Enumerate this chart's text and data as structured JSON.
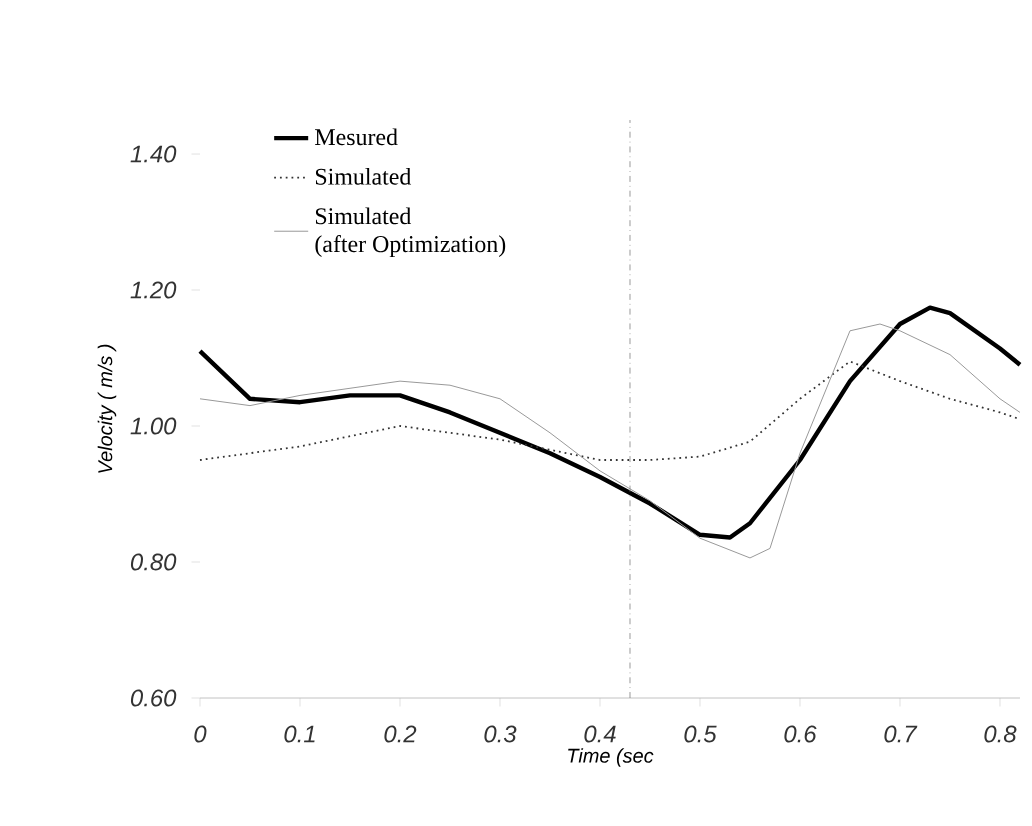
{
  "chart_data": {
    "type": "line",
    "xlabel": "Time (sec",
    "ylabel": "Velocity ( m/s )",
    "xlim": [
      0,
      0.82
    ],
    "ylim": [
      0.6,
      1.45
    ],
    "xticks": [
      0,
      0.1,
      0.2,
      0.3,
      0.4,
      0.5,
      0.6,
      0.7,
      0.8
    ],
    "yticks": [
      {
        "value": 0.6,
        "label": "0.60"
      },
      {
        "value": 0.8,
        "label": "0.80"
      },
      {
        "value": 1.0,
        "label": "1.00"
      },
      {
        "value": 1.2,
        "label": "1.20"
      },
      {
        "value": 1.4,
        "label": "1.40"
      }
    ],
    "legend": "top left",
    "marker": "none",
    "ref_lines": [
      {
        "axis": "x",
        "value": 0.43,
        "line_style": "dashed"
      }
    ],
    "series": [
      {
        "name": "Mesured",
        "color": "#000000",
        "line_style": "solid",
        "x": [
          0,
          0.05,
          0.1,
          0.15,
          0.2,
          0.25,
          0.3,
          0.35,
          0.4,
          0.45,
          0.5,
          0.53,
          0.55,
          0.6,
          0.65,
          0.7,
          0.73,
          0.75,
          0.8,
          0.82
        ],
        "values": [
          1.11,
          1.04,
          1.035,
          1.045,
          1.045,
          1.02,
          0.99,
          0.96,
          0.925,
          0.886,
          0.84,
          0.836,
          0.857,
          0.95,
          1.066,
          1.15,
          1.174,
          1.166,
          1.114,
          1.09
        ]
      },
      {
        "name": "Simulated",
        "color": "#333333",
        "line_style": "dotted",
        "x": [
          0,
          0.1,
          0.2,
          0.3,
          0.4,
          0.45,
          0.5,
          0.55,
          0.6,
          0.65,
          0.7,
          0.75,
          0.8,
          0.82
        ],
        "values": [
          0.95,
          0.97,
          1.0,
          0.98,
          0.95,
          0.95,
          0.955,
          0.977,
          1.04,
          1.095,
          1.066,
          1.04,
          1.02,
          1.01
        ]
      },
      {
        "name": "Simulated\n(after Optimization)",
        "color": "#999999",
        "line_style": "solid",
        "x": [
          0,
          0.05,
          0.1,
          0.2,
          0.25,
          0.3,
          0.35,
          0.4,
          0.45,
          0.5,
          0.55,
          0.57,
          0.6,
          0.65,
          0.68,
          0.7,
          0.75,
          0.8,
          0.82
        ],
        "values": [
          1.04,
          1.03,
          1.045,
          1.066,
          1.06,
          1.04,
          0.99,
          0.934,
          0.89,
          0.835,
          0.806,
          0.82,
          0.96,
          1.14,
          1.15,
          1.14,
          1.105,
          1.04,
          1.02
        ]
      }
    ]
  }
}
